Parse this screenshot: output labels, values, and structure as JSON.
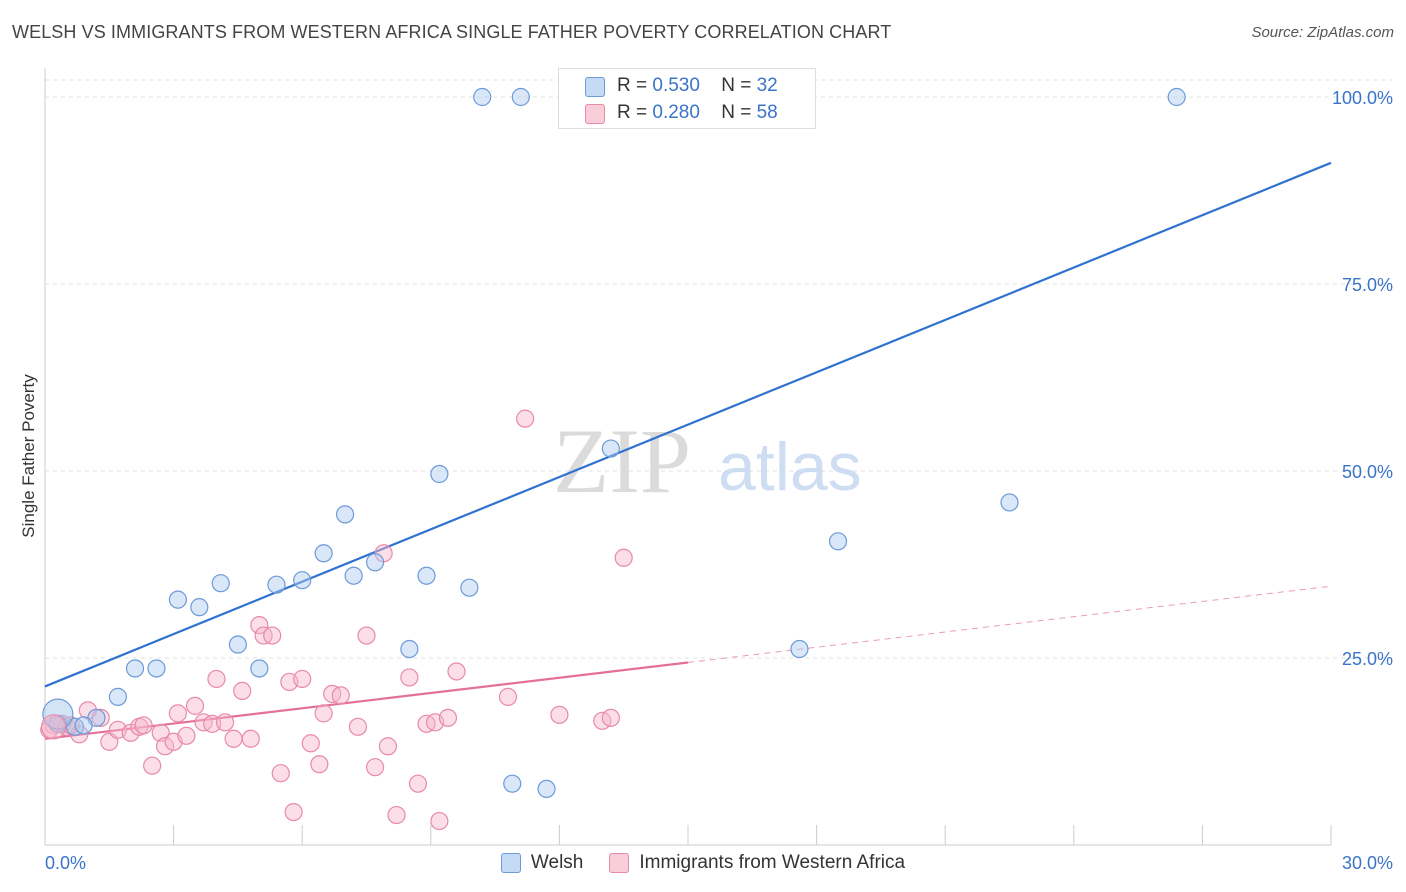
{
  "header": {
    "title": "WELSH VS IMMIGRANTS FROM WESTERN AFRICA SINGLE FATHER POVERTY CORRELATION CHART",
    "source": "Source: ZipAtlas.com"
  },
  "watermark": {
    "zip": "ZIP",
    "atlas": "atlas"
  },
  "legend_top": {
    "rows": [
      {
        "r_label": "R =",
        "r_value": "0.530",
        "n_label": "N =",
        "n_value": "32"
      },
      {
        "r_label": "R =",
        "r_value": "0.280",
        "n_label": "N =",
        "n_value": "58"
      }
    ]
  },
  "legend_bottom": {
    "welsh": "Welsh",
    "immigrants": "Immigrants from Western Africa"
  },
  "colors": {
    "blue_fill": "#aac9f0",
    "blue_stroke": "#6d9ad8",
    "blue_line": "#2f72d0",
    "pink_fill": "#f6b6ca",
    "pink_stroke": "#e88aa8",
    "pink_line": "#e4709a",
    "axis_label": "#3a74c9",
    "grid": "#e2e2e2"
  },
  "chart_data": {
    "type": "scatter",
    "title": "WELSH VS IMMIGRANTS FROM WESTERN AFRICA SINGLE FATHER POVERTY CORRELATION CHART",
    "xlabel": "",
    "ylabel": "Single Father Poverty",
    "xlim": [
      0,
      30
    ],
    "ylim": [
      0,
      100
    ],
    "x_tick_labels": [
      "0.0%",
      "30.0%"
    ],
    "y_ticks": [
      25,
      50,
      75,
      100
    ],
    "y_tick_labels": [
      "25.0%",
      "50.0%",
      "75.0%",
      "100.0%"
    ],
    "grid": true,
    "legend_position": "top-center",
    "series": [
      {
        "name": "Welsh",
        "color": "#6d9ad8",
        "points": [
          [
            0.3,
            16.2
          ],
          [
            0.7,
            15.8
          ],
          [
            1.2,
            17.0
          ],
          [
            1.7,
            19.8
          ],
          [
            2.1,
            23.6
          ],
          [
            2.6,
            23.6
          ],
          [
            3.1,
            32.8
          ],
          [
            3.6,
            31.8
          ],
          [
            4.1,
            35.0
          ],
          [
            4.5,
            26.8
          ],
          [
            5.0,
            23.6
          ],
          [
            5.4,
            34.8
          ],
          [
            6.0,
            35.4
          ],
          [
            6.5,
            39.0
          ],
          [
            7.0,
            44.2
          ],
          [
            7.2,
            36.0
          ],
          [
            7.7,
            37.8
          ],
          [
            8.5,
            26.2
          ],
          [
            8.9,
            36.0
          ],
          [
            9.2,
            49.6
          ],
          [
            9.9,
            34.4
          ],
          [
            10.2,
            100
          ],
          [
            11.1,
            100
          ],
          [
            12.4,
            100
          ],
          [
            13.2,
            53.0
          ],
          [
            10.9,
            8.2
          ],
          [
            11.7,
            7.5
          ],
          [
            17.6,
            26.2
          ],
          [
            18.5,
            40.6
          ],
          [
            22.5,
            45.8
          ],
          [
            26.4,
            100
          ],
          [
            0.9,
            16.0
          ]
        ],
        "trend": {
          "x": [
            0,
            30
          ],
          "y": [
            21.2,
            91.2
          ]
        }
      },
      {
        "name": "Immigrants from Western Africa",
        "color": "#e88aa8",
        "points": [
          [
            0.2,
            16.0
          ],
          [
            0.5,
            15.8
          ],
          [
            0.8,
            14.8
          ],
          [
            1.0,
            18.0
          ],
          [
            1.3,
            17.0
          ],
          [
            1.5,
            13.8
          ],
          [
            1.7,
            15.4
          ],
          [
            2.0,
            15.0
          ],
          [
            2.2,
            15.8
          ],
          [
            2.3,
            16.0
          ],
          [
            2.5,
            10.6
          ],
          [
            2.7,
            15.0
          ],
          [
            2.8,
            13.2
          ],
          [
            3.0,
            13.8
          ],
          [
            3.1,
            17.6
          ],
          [
            3.3,
            14.6
          ],
          [
            3.5,
            18.6
          ],
          [
            3.7,
            16.4
          ],
          [
            3.9,
            16.2
          ],
          [
            4.0,
            22.2
          ],
          [
            4.2,
            16.4
          ],
          [
            4.4,
            14.2
          ],
          [
            4.6,
            20.6
          ],
          [
            4.8,
            14.2
          ],
          [
            5.0,
            29.4
          ],
          [
            5.1,
            28.0
          ],
          [
            5.3,
            28.0
          ],
          [
            5.5,
            9.6
          ],
          [
            5.7,
            21.8
          ],
          [
            5.8,
            4.4
          ],
          [
            6.0,
            22.2
          ],
          [
            6.2,
            13.6
          ],
          [
            6.4,
            10.8
          ],
          [
            6.5,
            17.6
          ],
          [
            6.7,
            20.2
          ],
          [
            6.9,
            20.0
          ],
          [
            7.3,
            15.8
          ],
          [
            7.5,
            28.0
          ],
          [
            7.7,
            10.4
          ],
          [
            7.9,
            39.0
          ],
          [
            8.0,
            13.2
          ],
          [
            8.2,
            4.0
          ],
          [
            8.5,
            22.4
          ],
          [
            8.7,
            8.2
          ],
          [
            8.9,
            16.2
          ],
          [
            9.1,
            16.4
          ],
          [
            9.2,
            3.2
          ],
          [
            9.4,
            17.0
          ],
          [
            9.6,
            23.2
          ],
          [
            10.8,
            19.8
          ],
          [
            11.2,
            57.0
          ],
          [
            12.0,
            17.4
          ],
          [
            13.0,
            16.6
          ],
          [
            13.2,
            17.0
          ],
          [
            13.5,
            38.4
          ],
          [
            0.1,
            15.4
          ],
          [
            0.4,
            16.2
          ],
          [
            0.6,
            16.0
          ]
        ],
        "trend": {
          "x": [
            0,
            15
          ],
          "y": [
            14.2,
            24.4
          ]
        },
        "trend_extension": {
          "x": [
            15,
            30
          ],
          "y": [
            24.4,
            34.6
          ]
        }
      }
    ]
  }
}
